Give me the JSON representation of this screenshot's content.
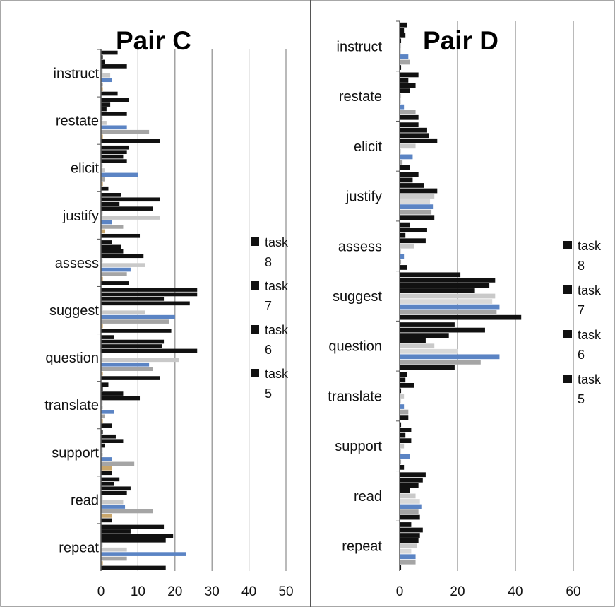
{
  "chart_data": [
    {
      "type": "bar",
      "orientation": "horizontal",
      "title": "Pair C",
      "xlim": [
        0,
        50
      ],
      "xticks": [
        0,
        10,
        20,
        30,
        40,
        50
      ],
      "grid": true,
      "legend_position": "right",
      "categories": [
        "instruct",
        "restate",
        "elicit",
        "justify",
        "assess",
        "suggest",
        "question",
        "translate",
        "support",
        "read",
        "repeat"
      ],
      "legend": [
        {
          "line1": "task",
          "line2": "8"
        },
        {
          "line1": "task",
          "line2": "7"
        },
        {
          "line1": "task",
          "line2": "6"
        },
        {
          "line1": "task",
          "line2": "5"
        }
      ],
      "series": [
        {
          "color": "#111111",
          "values": [
            4.5,
            7.5,
            7.5,
            5.5,
            3,
            26,
            3.5,
            2,
            0.5,
            5,
            17
          ]
        },
        {
          "color": "#111111",
          "values": [
            0.5,
            2.5,
            7,
            16,
            5.5,
            26,
            17,
            0.5,
            4,
            3.5,
            8
          ]
        },
        {
          "color": "#111111",
          "values": [
            1,
            1.5,
            6,
            5,
            6,
            17,
            16.5,
            6,
            6,
            8,
            19.5
          ]
        },
        {
          "color": "#111111",
          "values": [
            7,
            7,
            7,
            14,
            11.5,
            24,
            26,
            10.5,
            1,
            7,
            17.5
          ]
        },
        {
          "color": "#d9d9d9",
          "values": [
            0.5,
            0.5,
            0.5,
            0.5,
            0.5,
            0.5,
            0.5,
            0.5,
            0.5,
            0.5,
            0.5
          ]
        },
        {
          "color": "#c9c9c9",
          "values": [
            2.5,
            1.5,
            1,
            16,
            12,
            12,
            21,
            0.5,
            0.5,
            6,
            7
          ]
        },
        {
          "color": "#5b84c4",
          "values": [
            3,
            7,
            10,
            3,
            8,
            20,
            13,
            3.5,
            3,
            6.5,
            23
          ]
        },
        {
          "color": "#a5a5a5",
          "values": [
            0.5,
            13,
            1,
            6,
            7,
            18.5,
            14,
            1,
            9,
            14,
            7
          ]
        },
        {
          "color": "#c9a66b",
          "values": [
            0.5,
            0.5,
            0.5,
            1,
            0.5,
            0.5,
            0.5,
            0.5,
            3,
            3,
            0.5
          ]
        },
        {
          "color": "#111111",
          "values": [
            4.5,
            16,
            2,
            10.5,
            7.5,
            19,
            16,
            3,
            3,
            3,
            17.5
          ]
        }
      ]
    },
    {
      "type": "bar",
      "orientation": "horizontal",
      "title": "Pair D",
      "xlim": [
        0,
        60
      ],
      "xticks": [
        0,
        20,
        40,
        60
      ],
      "grid": true,
      "legend_position": "right",
      "categories": [
        "instruct",
        "restate",
        "elicit",
        "justify",
        "assess",
        "suggest",
        "question",
        "translate",
        "support",
        "read",
        "repeat"
      ],
      "legend": [
        {
          "line1": "task",
          "line2": "8"
        },
        {
          "line1": "task",
          "line2": "7"
        },
        {
          "line1": "task",
          "line2": "6"
        },
        {
          "line1": "task",
          "line2": "5"
        }
      ],
      "series": [
        {
          "color": "#111111",
          "values": [
            2.5,
            6.5,
            6.5,
            6.5,
            3.5,
            21,
            19,
            2.5,
            0.5,
            9,
            4
          ]
        },
        {
          "color": "#111111",
          "values": [
            1.5,
            3,
            9.5,
            4.5,
            9.5,
            33,
            29.5,
            2,
            4,
            8,
            8
          ]
        },
        {
          "color": "#111111",
          "values": [
            2,
            5.5,
            10,
            8.5,
            2,
            31,
            17,
            5,
            2,
            6.5,
            7
          ]
        },
        {
          "color": "#111111",
          "values": [
            0.5,
            3.5,
            13,
            13,
            9,
            26,
            9,
            0.5,
            4,
            3.5,
            6.5
          ]
        },
        {
          "color": "#c9c9c9",
          "values": [
            0.5,
            0.5,
            5.5,
            12,
            5,
            33,
            12,
            1.5,
            1.5,
            5.5,
            6
          ]
        },
        {
          "color": "#d9d9d9",
          "values": [
            0.5,
            0.5,
            0.5,
            10.5,
            0.5,
            32,
            20,
            0.5,
            0.5,
            7,
            4
          ]
        },
        {
          "color": "#5b84c4",
          "values": [
            3,
            1.5,
            4.5,
            11.5,
            1.5,
            34.5,
            34.5,
            1.5,
            3.5,
            7.5,
            5.5
          ]
        },
        {
          "color": "#a5a5a5",
          "values": [
            3.5,
            5.5,
            1,
            11,
            0.5,
            33.5,
            28,
            3,
            0.5,
            6.5,
            5.5
          ]
        },
        {
          "color": "#111111",
          "values": [
            0.5,
            6.5,
            3.5,
            12,
            2.5,
            42,
            19,
            3,
            1.5,
            7,
            0.5
          ]
        }
      ]
    }
  ]
}
